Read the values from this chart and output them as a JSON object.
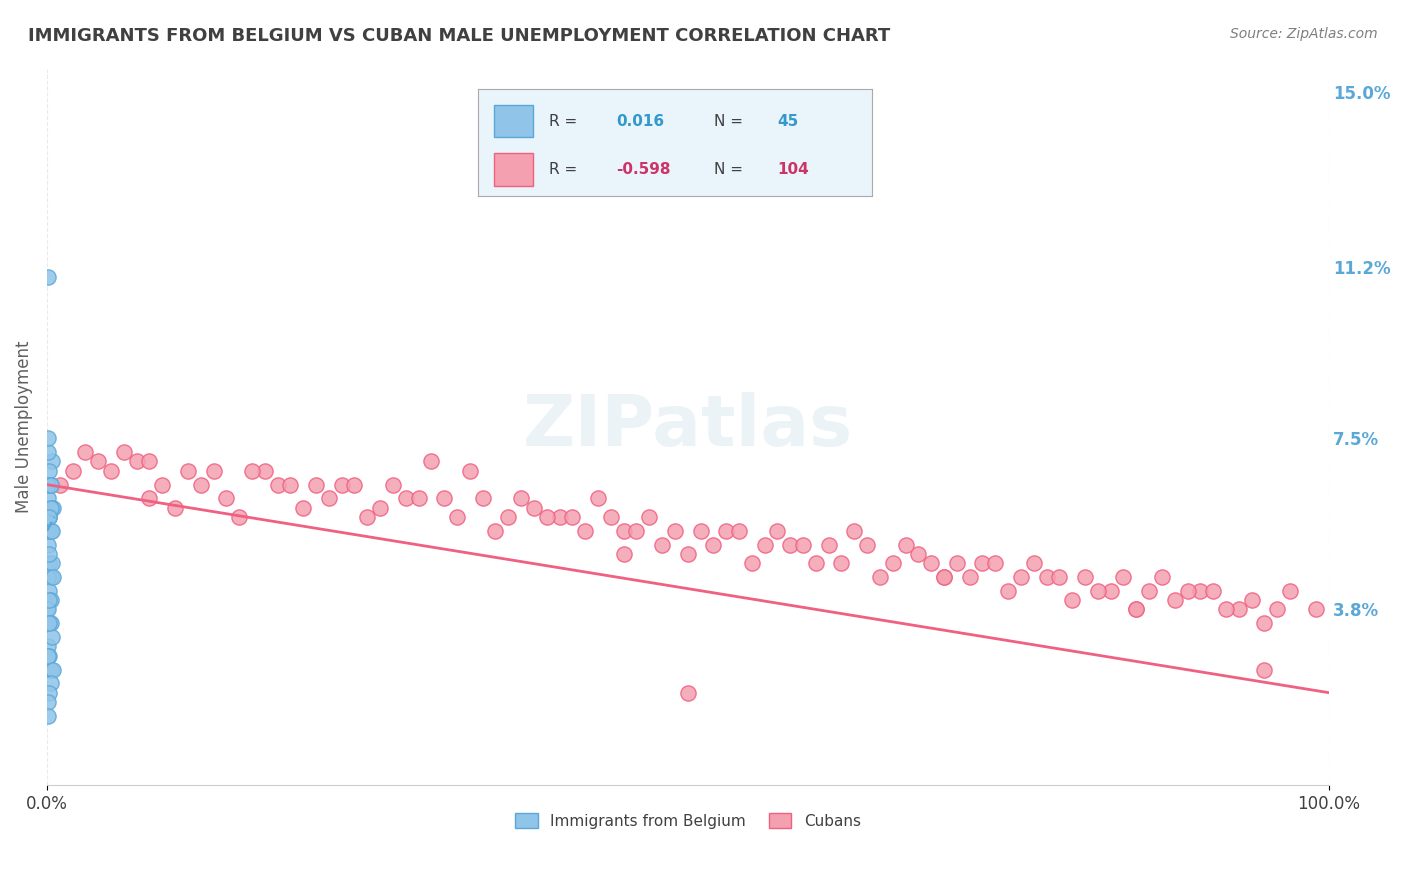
{
  "title": "IMMIGRANTS FROM BELGIUM VS CUBAN MALE UNEMPLOYMENT CORRELATION CHART",
  "source_text": "Source: ZipAtlas.com",
  "xlabel": "",
  "ylabel": "Male Unemployment",
  "xlim": [
    0.0,
    1.0
  ],
  "ylim": [
    0.0,
    0.155
  ],
  "xtick_labels": [
    "0.0%",
    "100.0%"
  ],
  "ytick_labels_right": [
    "15.0%",
    "11.2%",
    "7.5%",
    "3.8%"
  ],
  "ytick_values_right": [
    0.15,
    0.112,
    0.075,
    0.038
  ],
  "watermark": "ZIPatlas",
  "legend_box_color": "#e8f4f8",
  "legend_r1": "R =  0.016",
  "legend_n1": "N =  45",
  "legend_r2": "R = -0.598",
  "legend_n2": "N = 104",
  "belgium_color": "#90c4e8",
  "cuban_color": "#f4a0b0",
  "belgium_line_color": "#5aa8d8",
  "cuban_line_color": "#f06080",
  "belgium_scatter_x": [
    0.0,
    0.001,
    0.002,
    0.003,
    0.0,
    0.001,
    0.002,
    0.003,
    0.004,
    0.005,
    0.001,
    0.002,
    0.001,
    0.003,
    0.002,
    0.001,
    0.004,
    0.001,
    0.002,
    0.003,
    0.0,
    0.001,
    0.002,
    0.003,
    0.001,
    0.002,
    0.003,
    0.001,
    0.004,
    0.002,
    0.005,
    0.003,
    0.002,
    0.001,
    0.001,
    0.002,
    0.003,
    0.003,
    0.001,
    0.004,
    0.005,
    0.002,
    0.001,
    0.003,
    0.002
  ],
  "belgium_scatter_y": [
    0.065,
    0.062,
    0.058,
    0.06,
    0.055,
    0.052,
    0.048,
    0.045,
    0.07,
    0.06,
    0.11,
    0.068,
    0.072,
    0.065,
    0.058,
    0.055,
    0.048,
    0.045,
    0.042,
    0.04,
    0.038,
    0.038,
    0.035,
    0.035,
    0.03,
    0.028,
    0.025,
    0.028,
    0.032,
    0.035,
    0.025,
    0.022,
    0.02,
    0.018,
    0.015,
    0.05,
    0.055,
    0.06,
    0.065,
    0.055,
    0.045,
    0.04,
    0.075,
    0.065,
    0.058
  ],
  "cuban_scatter_x": [
    0.01,
    0.02,
    0.04,
    0.06,
    0.08,
    0.1,
    0.13,
    0.15,
    0.18,
    0.2,
    0.23,
    0.25,
    0.28,
    0.3,
    0.33,
    0.35,
    0.38,
    0.4,
    0.43,
    0.45,
    0.48,
    0.5,
    0.53,
    0.55,
    0.58,
    0.6,
    0.63,
    0.65,
    0.68,
    0.7,
    0.73,
    0.75,
    0.78,
    0.8,
    0.83,
    0.85,
    0.88,
    0.9,
    0.93,
    0.95,
    0.05,
    0.12,
    0.22,
    0.32,
    0.42,
    0.52,
    0.62,
    0.72,
    0.82,
    0.92,
    0.07,
    0.17,
    0.27,
    0.37,
    0.47,
    0.57,
    0.67,
    0.77,
    0.87,
    0.97,
    0.03,
    0.08,
    0.16,
    0.24,
    0.34,
    0.44,
    0.54,
    0.64,
    0.74,
    0.84,
    0.94,
    0.11,
    0.21,
    0.31,
    0.41,
    0.51,
    0.61,
    0.71,
    0.81,
    0.91,
    0.14,
    0.26,
    0.36,
    0.46,
    0.56,
    0.66,
    0.76,
    0.86,
    0.96,
    0.19,
    0.29,
    0.39,
    0.49,
    0.59,
    0.69,
    0.79,
    0.89,
    0.99,
    0.09,
    0.45,
    0.7,
    0.85,
    0.5,
    0.95
  ],
  "cuban_scatter_y": [
    0.065,
    0.068,
    0.07,
    0.072,
    0.062,
    0.06,
    0.068,
    0.058,
    0.065,
    0.06,
    0.065,
    0.058,
    0.062,
    0.07,
    0.068,
    0.055,
    0.06,
    0.058,
    0.062,
    0.055,
    0.052,
    0.05,
    0.055,
    0.048,
    0.052,
    0.048,
    0.055,
    0.045,
    0.05,
    0.045,
    0.048,
    0.042,
    0.045,
    0.04,
    0.042,
    0.038,
    0.04,
    0.042,
    0.038,
    0.035,
    0.068,
    0.065,
    0.062,
    0.058,
    0.055,
    0.052,
    0.048,
    0.045,
    0.042,
    0.038,
    0.07,
    0.068,
    0.065,
    0.062,
    0.058,
    0.055,
    0.052,
    0.048,
    0.045,
    0.042,
    0.072,
    0.07,
    0.068,
    0.065,
    0.062,
    0.058,
    0.055,
    0.052,
    0.048,
    0.045,
    0.04,
    0.068,
    0.065,
    0.062,
    0.058,
    0.055,
    0.052,
    0.048,
    0.045,
    0.042,
    0.062,
    0.06,
    0.058,
    0.055,
    0.052,
    0.048,
    0.045,
    0.042,
    0.038,
    0.065,
    0.062,
    0.058,
    0.055,
    0.052,
    0.048,
    0.045,
    0.042,
    0.038,
    0.065,
    0.05,
    0.045,
    0.038,
    0.02,
    0.025
  ],
  "belgium_trend_x": [
    0.0,
    0.005
  ],
  "belgium_trend_y_start": 0.055,
  "belgium_trend_y_end": 0.058,
  "cuban_trend_x_start": 0.0,
  "cuban_trend_x_end": 1.0,
  "cuban_trend_y_start": 0.065,
  "cuban_trend_y_end": 0.02,
  "background_color": "#ffffff",
  "grid_color": "#e0e0e0",
  "title_color": "#404040",
  "axis_label_color": "#606060",
  "right_tick_color": "#5aa8d8"
}
